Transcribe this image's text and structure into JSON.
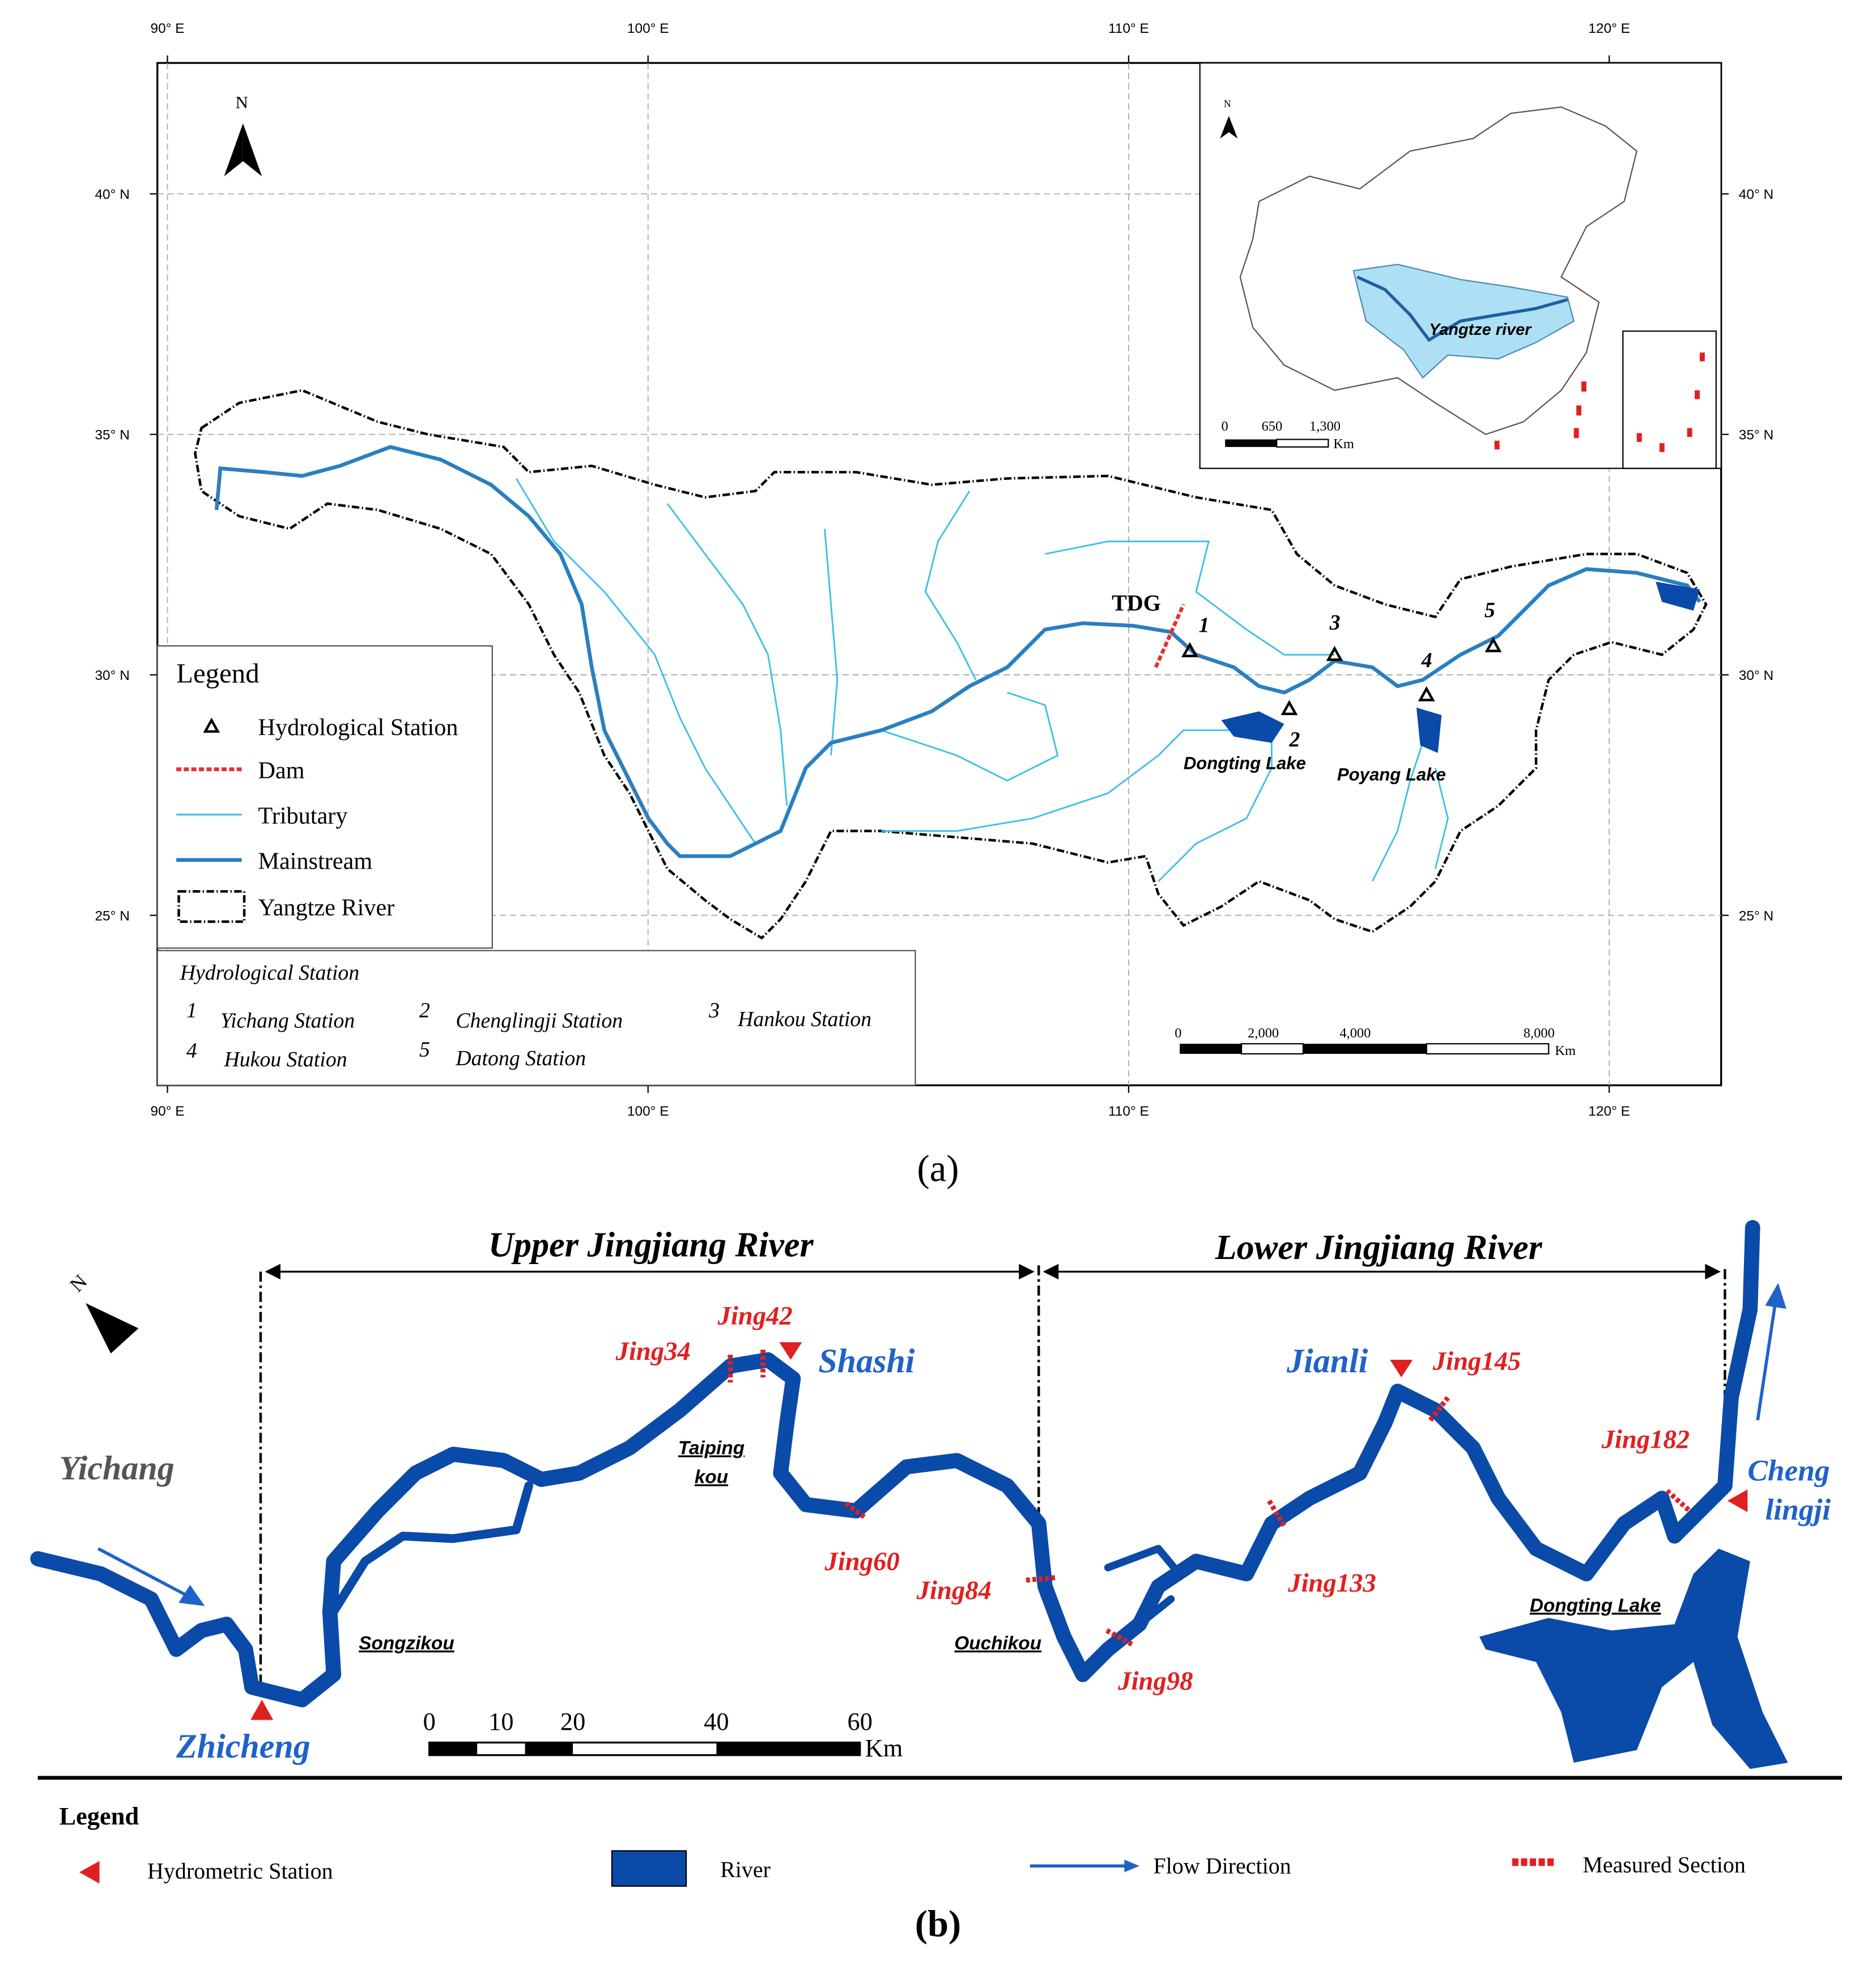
{
  "panel_a": {
    "caption": "(a)",
    "longitudes": [
      {
        "value": 90,
        "label": "90° E"
      },
      {
        "value": 100,
        "label": "100° E"
      },
      {
        "value": 110,
        "label": "110° E"
      },
      {
        "value": 120,
        "label": "120° E"
      }
    ],
    "latitudes": [
      {
        "value": 40,
        "label": "40° N"
      },
      {
        "value": 35,
        "label": "35° N"
      },
      {
        "value": 30,
        "label": "30° N"
      },
      {
        "value": 25,
        "label": "25° N"
      }
    ],
    "north": "N",
    "legend": {
      "title": "Legend",
      "items": [
        "Hydrological Station",
        "Dam",
        "Tributary",
        "Mainstream",
        "Yangtze River"
      ]
    },
    "station_box": {
      "title": "Hydrological Station",
      "stations": [
        {
          "number": "1",
          "name": "Yichang Station"
        },
        {
          "number": "2",
          "name": "Chenglingji Station"
        },
        {
          "number": "3",
          "name": "Hankou Station"
        },
        {
          "number": "4",
          "name": "Hukou Station"
        },
        {
          "number": "5",
          "name": "Datong Station"
        }
      ]
    },
    "map_labels": {
      "dam": "TDG",
      "dongting": "Dongting Lake",
      "poyang": "Poyang Lake"
    },
    "scale_bar": {
      "labels": [
        "0",
        "2,000",
        "4,000",
        "8,000"
      ],
      "unit": "Km"
    },
    "inset": {
      "north": "N",
      "river": "Yangtze river",
      "scale_labels": [
        "0",
        "650",
        "1,300"
      ],
      "unit": "Km"
    }
  },
  "panel_b": {
    "caption": "(b)",
    "reaches": [
      "Upper Jingjiang River",
      "Lower Jingjiang River"
    ],
    "north": "N",
    "stations": {
      "yichang": "Yichang",
      "zhicheng": "Zhicheng",
      "shashi": "Shashi",
      "jianli": "Jianli",
      "chenglingji": [
        "Cheng",
        "lingji"
      ]
    },
    "sections": [
      "Jing34",
      "Jing42",
      "Jing60",
      "Jing84",
      "Jing98",
      "Jing133",
      "Jing145",
      "Jing182"
    ],
    "places": {
      "taipingkou": [
        "Taiping",
        "kou"
      ],
      "songzikou": "Songzikou",
      "ouchikou": "Ouchikou",
      "dongting": "Dongting Lake"
    },
    "scale_bar": {
      "labels": [
        "0",
        "10",
        "20",
        "40",
        "60"
      ],
      "unit": "Km"
    },
    "legend": {
      "title": "Legend",
      "items": [
        "Hydrometric Station",
        "River",
        "Flow Direction",
        "Measured Section"
      ]
    }
  }
}
